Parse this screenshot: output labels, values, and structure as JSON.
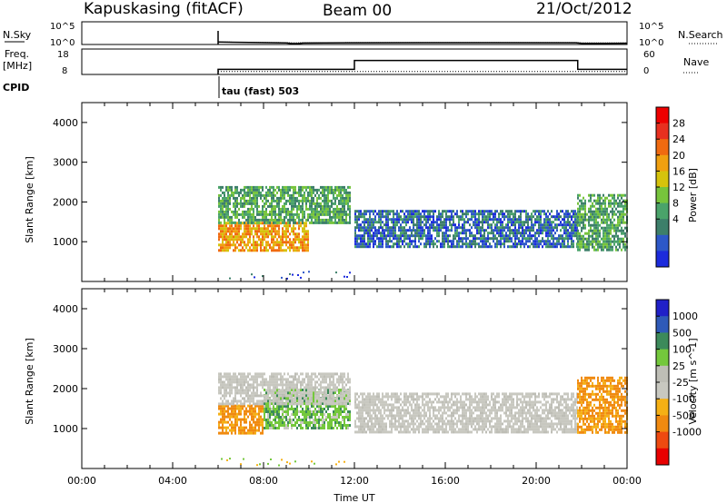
{
  "header": {
    "station": "Kapuskasing (fitACF)",
    "beam": "Beam 00",
    "date": "21/Oct/2012"
  },
  "strip_sky": {
    "left_label": "N.Sky",
    "left_ticks": [
      "10^5",
      "10^0"
    ],
    "right_ticks": [
      "10^5",
      "10^0"
    ],
    "right_label": "N.Search"
  },
  "strip_freq": {
    "left_label_1": "Freq.",
    "left_label_2": "[MHz]",
    "left_ticks": [
      "18",
      "8"
    ],
    "right_ticks": [
      "60",
      "0"
    ],
    "right_label": "Nave"
  },
  "cpid": {
    "label": "CPID",
    "value": "tau (fast) 503"
  },
  "colors": {
    "power": [
      "#1c2bdc",
      "#2d58c8",
      "#3d7f6a",
      "#4aa36a",
      "#77c43c",
      "#d6c30c",
      "#f0a010",
      "#f06a10",
      "#e83020",
      "#ee0000"
    ],
    "velocity": [
      "#e80000",
      "#ee4a10",
      "#f08a10",
      "#f5b015",
      "#c8c8c0",
      "#bebeb6",
      "#74c83c",
      "#3c8a5a",
      "#2f5ab8",
      "#2020c8"
    ]
  },
  "chart_data": [
    {
      "type": "line",
      "name": "strip-sky",
      "x": [
        "00:00",
        "05:55",
        "06:00",
        "09:00",
        "09:15",
        "09:30",
        "09:45",
        "12:00",
        "15:00",
        "18:00",
        "21:45",
        "22:00",
        "23:00",
        "24:00"
      ],
      "series": [
        {
          "name": "N.Sky",
          "values": [
            null,
            null,
            0.5,
            0.3,
            0.1,
            0.12,
            0.25,
            0.32,
            0.33,
            0.33,
            0.32,
            0.18,
            0.15,
            0.2
          ]
        },
        {
          "name": "N.Search",
          "values": [
            null,
            null,
            0.5,
            0.34,
            0.3,
            0.3,
            0.32,
            0.35,
            0.36,
            0.36,
            0.35,
            0.3,
            0.28,
            0.3
          ]
        }
      ],
      "ylim": [
        0,
        5
      ]
    },
    {
      "type": "line",
      "name": "strip-freq",
      "x": [
        "00:00",
        "06:00",
        "12:00",
        "21:50",
        "24:00"
      ],
      "series": [
        {
          "name": "Freq.",
          "values": [
            null,
            10.0,
            13.5,
            10.0,
            10.0
          ]
        },
        {
          "name": "Nave",
          "values": [
            null,
            7,
            7,
            7,
            7
          ]
        }
      ],
      "ylim_freq": [
        8,
        18
      ],
      "ylim_nave": [
        0,
        60
      ]
    },
    {
      "type": "heatmap",
      "name": "power",
      "title": "",
      "xlabel": "",
      "ylabel": "Slant Range [km]",
      "xlim": [
        "00:00",
        "24:00"
      ],
      "ylim": [
        0,
        4500
      ],
      "yticks": [
        1000,
        2000,
        3000,
        4000
      ],
      "colorbar_label": "Power [dB]",
      "colorbar_ticks": [
        4,
        8,
        12,
        16,
        20,
        24,
        28
      ],
      "colorbar_range": [
        0,
        30
      ],
      "echo_regions": [
        {
          "t_start": 6.0,
          "t_end": 10.0,
          "range_min": 800,
          "range_max": 1500,
          "power": 20
        },
        {
          "t_start": 6.0,
          "t_end": 11.8,
          "range_min": 1500,
          "range_max": 2400,
          "power": 10
        },
        {
          "t_start": 12.0,
          "t_end": 21.8,
          "range_min": 900,
          "range_max": 1800,
          "power": 5
        },
        {
          "t_start": 21.8,
          "t_end": 24.0,
          "range_min": 800,
          "range_max": 2200,
          "power": 10
        }
      ]
    },
    {
      "type": "heatmap",
      "name": "velocity",
      "title": "",
      "xlabel": "Time UT",
      "ylabel": "Slant Range [km]",
      "xticks": [
        "00:00",
        "04:00",
        "08:00",
        "12:00",
        "16:00",
        "20:00",
        "00:00"
      ],
      "ylim": [
        0,
        4500
      ],
      "yticks": [
        1000,
        2000,
        3000,
        4000
      ],
      "colorbar_label": "Velocity [m s^-1]",
      "colorbar_ticks": [
        "1000",
        "500",
        "100",
        "25",
        "-25",
        "-100",
        "-500",
        "-1000"
      ],
      "echo_regions": [
        {
          "t_start": 6.0,
          "t_end": 8.0,
          "range_min": 900,
          "range_max": 1600,
          "velocity": -150
        },
        {
          "t_start": 8.0,
          "t_end": 11.8,
          "range_min": 1000,
          "range_max": 2000,
          "velocity": 100
        },
        {
          "t_start": 6.0,
          "t_end": 11.8,
          "range_min": 1600,
          "range_max": 2400,
          "velocity": 0
        },
        {
          "t_start": 12.0,
          "t_end": 21.8,
          "range_min": 900,
          "range_max": 1900,
          "velocity": 0
        },
        {
          "t_start": 21.8,
          "t_end": 24.0,
          "range_min": 900,
          "range_max": 2300,
          "velocity": -100
        }
      ]
    }
  ]
}
